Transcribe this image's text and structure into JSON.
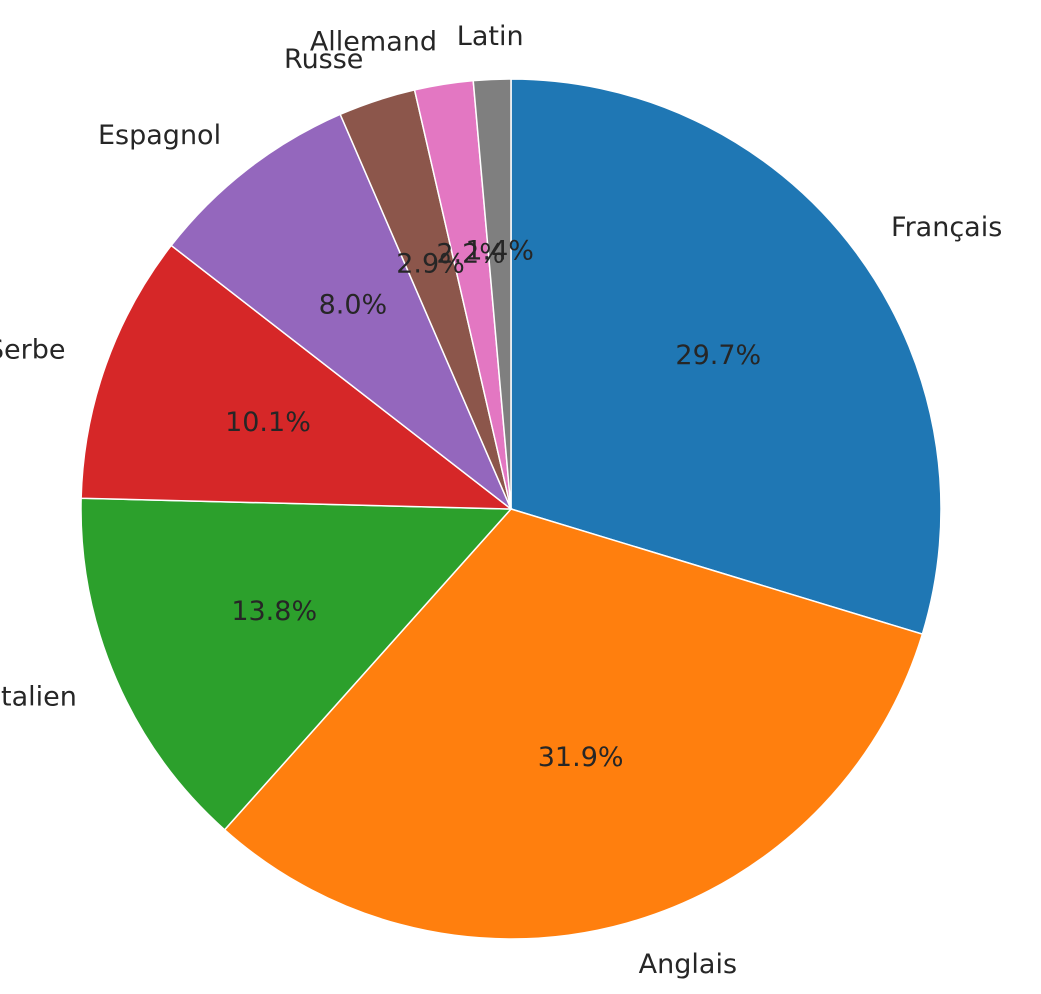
{
  "chart_data": {
    "type": "pie",
    "title": "",
    "start_angle_deg": 90,
    "direction": "clockwise",
    "slices": [
      {
        "label": "Français",
        "value": 29.7,
        "pct_text": "29.7%",
        "color": "#1f77b4"
      },
      {
        "label": "Anglais",
        "value": 31.9,
        "pct_text": "31.9%",
        "color": "#ff7f0e"
      },
      {
        "label": "Italien",
        "value": 13.8,
        "pct_text": "13.8%",
        "color": "#2ca02c"
      },
      {
        "label": "Serbe",
        "value": 10.1,
        "pct_text": "10.1%",
        "color": "#d62728"
      },
      {
        "label": "Espagnol",
        "value": 8.0,
        "pct_text": "8.0%",
        "color": "#9467bd"
      },
      {
        "label": "Russe",
        "value": 2.9,
        "pct_text": "2.9%",
        "color": "#8c564b"
      },
      {
        "label": "Allemand",
        "value": 2.2,
        "pct_text": "2.2%",
        "color": "#e377c2"
      },
      {
        "label": "Latin",
        "value": 1.4,
        "pct_text": "1.4%",
        "color": "#7f7f7f"
      }
    ]
  }
}
